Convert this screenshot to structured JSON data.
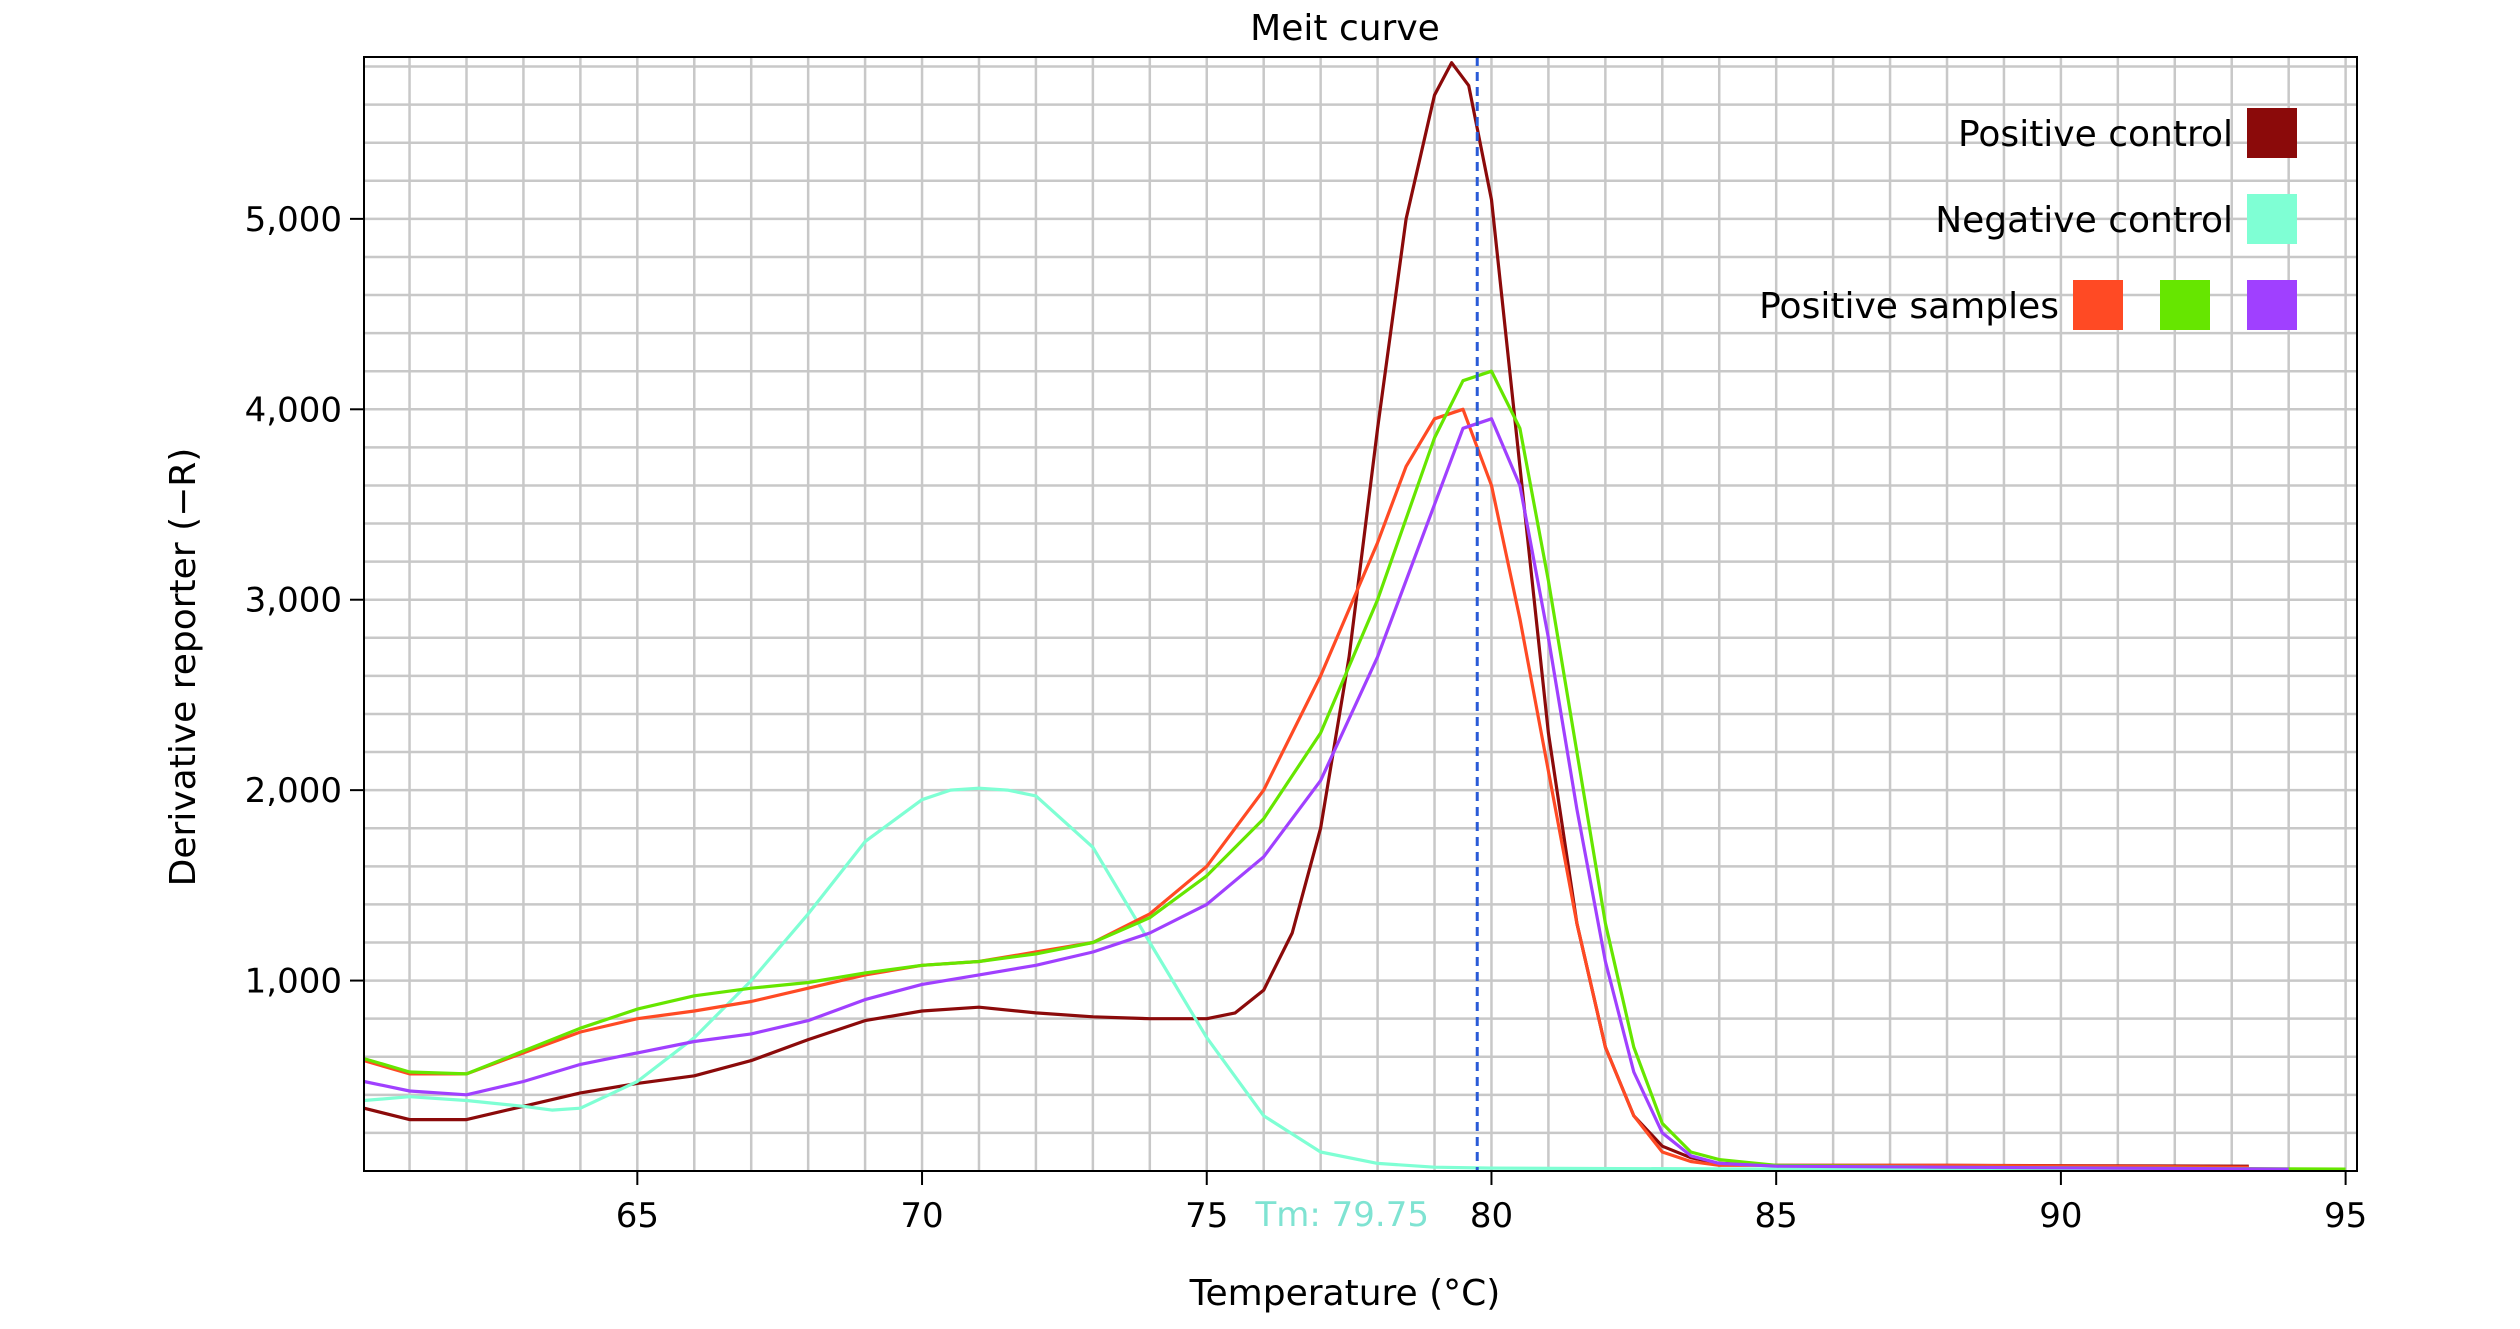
{
  "chart_data": {
    "type": "line",
    "title": "Meit curve",
    "xlabel": "Temperature (°C)",
    "ylabel": "Derivative reporter (−R)",
    "xlim": [
      60.2,
      95.2
    ],
    "ylim": [
      0,
      5850
    ],
    "x_ticks": [
      65,
      70,
      75,
      80,
      85,
      90,
      95
    ],
    "x_tick_labels": [
      "65",
      "70",
      "75",
      "80",
      "85",
      "90",
      "95"
    ],
    "y_ticks": [
      1000,
      2000,
      3000,
      4000,
      5000
    ],
    "y_tick_labels": [
      "1,000",
      "2,000",
      "3,000",
      "4,000",
      "5,000"
    ],
    "x_minor_step": 1,
    "y_minor_step": 200,
    "grid": true,
    "tm_marker": {
      "x": 79.75,
      "label": "Tm: 79.75",
      "color": "#2a5bd7",
      "label_color": "#7fe3d2"
    },
    "legend": {
      "position": "top-right",
      "entries": [
        {
          "label": "Positive control",
          "colors": [
            "#8b0a0a"
          ]
        },
        {
          "label": "Negative control",
          "colors": [
            "#7fffd4"
          ]
        },
        {
          "label": "Positive samples",
          "colors": [
            "#ff4a24",
            "#66e600",
            "#a040ff"
          ]
        }
      ]
    },
    "series": [
      {
        "color": "#8b0a0a",
        "x": [
          60.2,
          61,
          62,
          63,
          64,
          65,
          66,
          67,
          68,
          69,
          70,
          71,
          72,
          73,
          74,
          75,
          75.5,
          76,
          76.5,
          77,
          77.5,
          78,
          78.5,
          79,
          79.3,
          79.6,
          80,
          80.5,
          81,
          81.5,
          82,
          82.5,
          83,
          83.5,
          84,
          85,
          88,
          93.3
        ],
        "y": [
          330,
          270,
          270,
          340,
          410,
          460,
          500,
          580,
          690,
          790,
          840,
          860,
          830,
          810,
          800,
          800,
          830,
          950,
          1250,
          1800,
          2700,
          3900,
          5000,
          5650,
          5820,
          5700,
          5100,
          3700,
          2300,
          1300,
          650,
          290,
          130,
          70,
          40,
          30,
          30,
          25
        ]
      },
      {
        "color": "#7fffd4",
        "x": [
          60.2,
          61,
          62,
          63,
          63.5,
          64,
          65,
          66,
          67,
          68,
          69,
          70,
          70.5,
          71,
          71.5,
          72,
          73,
          74,
          75,
          76,
          77,
          78,
          79,
          80,
          85,
          90,
          95
        ],
        "y": [
          370,
          390,
          370,
          340,
          320,
          330,
          470,
          700,
          1000,
          1350,
          1730,
          1950,
          2000,
          2010,
          2000,
          1970,
          1700,
          1200,
          700,
          290,
          100,
          40,
          20,
          15,
          10,
          10,
          10
        ]
      },
      {
        "color": "#ff4a24",
        "x": [
          60.2,
          61,
          62,
          63,
          64,
          65,
          66,
          67,
          68,
          69,
          70,
          71,
          72,
          73,
          74,
          75,
          76,
          77,
          78,
          78.5,
          79,
          79.5,
          80,
          80.5,
          81,
          81.5,
          82,
          82.5,
          83,
          83.5,
          84,
          85,
          88,
          93.3
        ],
        "y": [
          580,
          510,
          510,
          620,
          730,
          800,
          840,
          890,
          960,
          1030,
          1080,
          1100,
          1150,
          1200,
          1350,
          1600,
          2000,
          2600,
          3300,
          3700,
          3950,
          4000,
          3600,
          2900,
          2100,
          1300,
          650,
          290,
          100,
          50,
          30,
          30,
          30,
          20
        ]
      },
      {
        "color": "#66e600",
        "x": [
          60.2,
          61,
          62,
          63,
          64,
          65,
          66,
          67,
          68,
          69,
          70,
          71,
          72,
          73,
          74,
          75,
          76,
          77,
          78,
          79,
          79.5,
          80,
          80.5,
          81,
          81.5,
          82,
          82.5,
          83,
          83.5,
          84,
          85,
          88,
          95
        ],
        "y": [
          590,
          520,
          510,
          630,
          750,
          850,
          920,
          960,
          990,
          1040,
          1080,
          1100,
          1140,
          1200,
          1330,
          1550,
          1850,
          2300,
          3000,
          3850,
          4150,
          4200,
          3900,
          3100,
          2200,
          1300,
          650,
          250,
          100,
          60,
          30,
          20,
          10
        ]
      },
      {
        "color": "#a040ff",
        "x": [
          60.2,
          61,
          62,
          63,
          64,
          65,
          66,
          67,
          68,
          69,
          70,
          71,
          72,
          73,
          74,
          75,
          76,
          77,
          78,
          79,
          79.5,
          80,
          80.5,
          81,
          81.5,
          82,
          82.5,
          83,
          83.5,
          84,
          85,
          88,
          94
        ],
        "y": [
          470,
          420,
          400,
          470,
          560,
          620,
          680,
          720,
          790,
          900,
          980,
          1030,
          1080,
          1150,
          1250,
          1400,
          1650,
          2050,
          2700,
          3500,
          3900,
          3950,
          3600,
          2800,
          1900,
          1100,
          520,
          200,
          80,
          40,
          25,
          20,
          10
        ]
      }
    ]
  }
}
